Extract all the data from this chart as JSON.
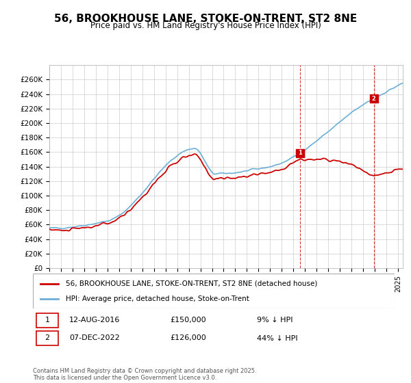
{
  "title": "56, BROOKHOUSE LANE, STOKE-ON-TRENT, ST2 8NE",
  "subtitle": "Price paid vs. HM Land Registry's House Price Index (HPI)",
  "ylim": [
    0,
    280000
  ],
  "yticks": [
    0,
    20000,
    40000,
    60000,
    80000,
    100000,
    120000,
    140000,
    160000,
    180000,
    200000,
    220000,
    240000,
    260000
  ],
  "hpi_color": "#6baed6",
  "sale_color": "#cc0000",
  "marker1_date_idx": 258,
  "marker1_label": "1",
  "marker1_date_str": "12-AUG-2016",
  "marker1_price": 150000,
  "marker1_pct": "9% ↓ HPI",
  "marker2_date_idx": 335,
  "marker2_label": "2",
  "marker2_date_str": "07-DEC-2022",
  "marker2_price": 126000,
  "marker2_pct": "44% ↓ HPI",
  "legend_line1": "56, BROOKHOUSE LANE, STOKE-ON-TRENT, ST2 8NE (detached house)",
  "legend_line2": "HPI: Average price, detached house, Stoke-on-Trent",
  "footnote": "Contains HM Land Registry data © Crown copyright and database right 2025.\nThis data is licensed under the Open Government Licence v3.0.",
  "x_start_year": 1995,
  "x_end_year": 2025
}
